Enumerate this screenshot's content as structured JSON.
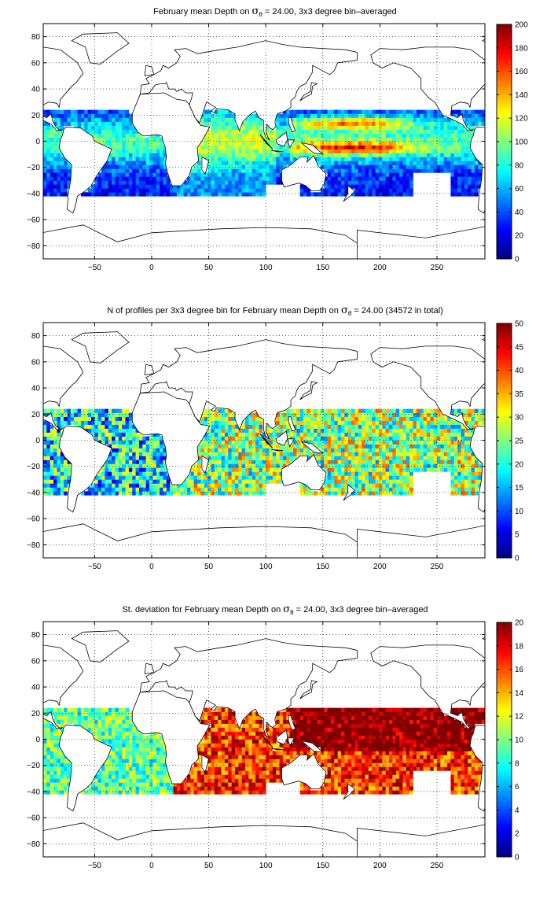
{
  "chart_data": [
    {
      "type": "heatmap",
      "title_parts": [
        "February mean Depth on ",
        "σ",
        "θ",
        " = 24.00, 3x3 degree bin–averaged"
      ],
      "xlabel": "",
      "ylabel": "",
      "xlim": [
        -95,
        292
      ],
      "ylim": [
        -90,
        90
      ],
      "xticks": [
        -50,
        0,
        50,
        100,
        150,
        200,
        250
      ],
      "yticks": [
        -80,
        -60,
        -40,
        -20,
        0,
        20,
        40,
        60,
        80
      ],
      "grid": true,
      "colorbar": {
        "min": 0,
        "max": 200,
        "ticks": [
          0,
          20,
          40,
          60,
          80,
          100,
          120,
          140,
          160,
          180,
          200
        ],
        "colormap": "jet"
      },
      "pattern": "mean",
      "bin_size_deg": 3
    },
    {
      "type": "heatmap",
      "title_parts": [
        "N of profiles per 3x3 degree bin for February mean Depth on ",
        "σ",
        "θ",
        " = 24.00 (34572 in total)"
      ],
      "xlabel": "",
      "ylabel": "",
      "xlim": [
        -95,
        292
      ],
      "ylim": [
        -90,
        90
      ],
      "xticks": [
        -50,
        0,
        50,
        100,
        150,
        200,
        250
      ],
      "yticks": [
        -80,
        -60,
        -40,
        -20,
        0,
        20,
        40,
        60,
        80
      ],
      "grid": true,
      "colorbar": {
        "min": 0,
        "max": 50,
        "ticks": [
          0,
          5,
          10,
          15,
          20,
          25,
          30,
          35,
          40,
          45,
          50
        ],
        "colormap": "jet"
      },
      "pattern": "count",
      "bin_size_deg": 3,
      "total_profiles": 34572
    },
    {
      "type": "heatmap",
      "title_parts": [
        "St. deviation for February mean Depth on ",
        "σ",
        "θ",
        " = 24.00, 3x3 degree bin–averaged"
      ],
      "xlabel": "",
      "ylabel": "",
      "xlim": [
        -95,
        292
      ],
      "ylim": [
        -90,
        90
      ],
      "xticks": [
        -50,
        0,
        50,
        100,
        150,
        200,
        250
      ],
      "yticks": [
        -80,
        -60,
        -40,
        -20,
        0,
        20,
        40,
        60,
        80
      ],
      "grid": true,
      "colorbar": {
        "min": 0,
        "max": 20,
        "ticks": [
          0,
          2,
          4,
          6,
          8,
          10,
          12,
          14,
          16,
          18,
          20
        ],
        "colormap": "jet"
      },
      "pattern": "std",
      "bin_size_deg": 3
    }
  ]
}
